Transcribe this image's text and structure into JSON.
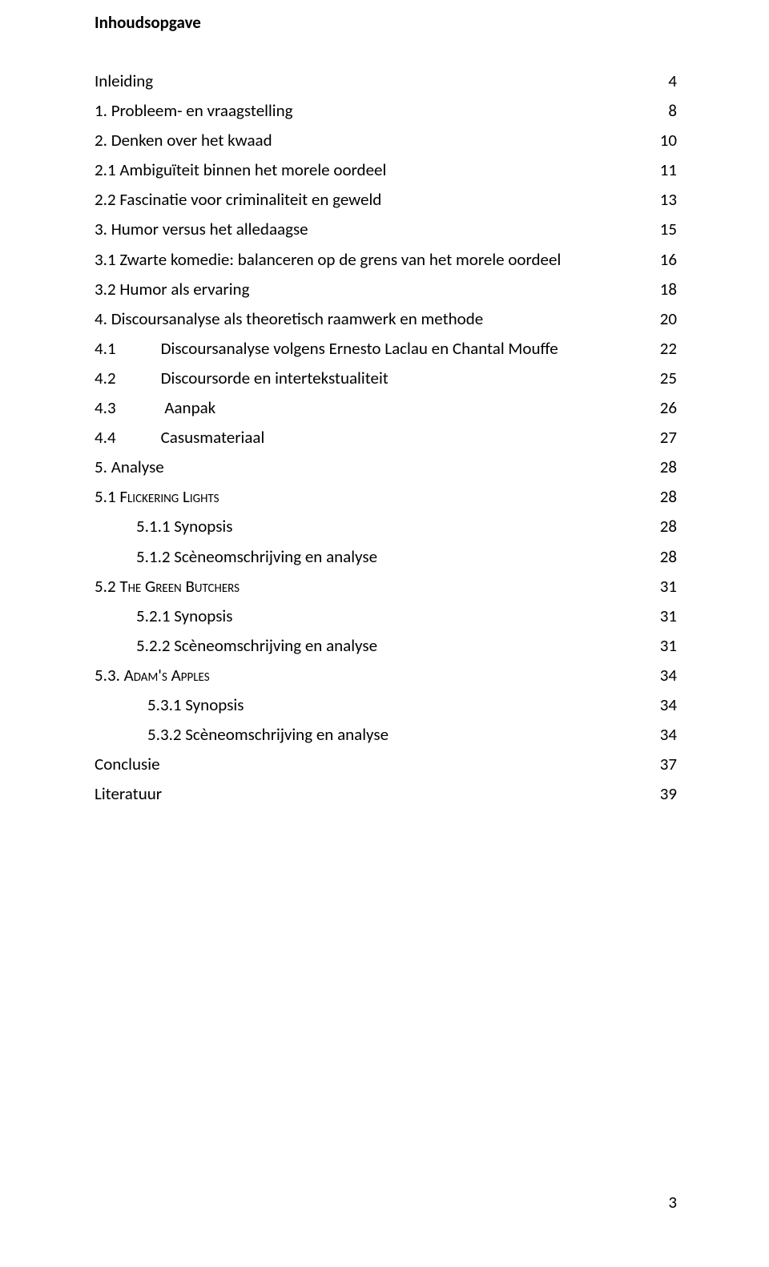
{
  "title": "Inhoudsopgave",
  "entries": [
    {
      "label": "Inleiding",
      "page": "4",
      "level": "lvl0"
    },
    {
      "label": "1. Probleem- en vraagstelling",
      "page": "8",
      "level": "lvl0"
    },
    {
      "label": "2. Denken over het kwaad",
      "page": "10",
      "level": "lvl0"
    },
    {
      "label": "2.1 Ambiguïteit binnen het morele oordeel",
      "page": "11",
      "level": "lvl1"
    },
    {
      "label": "2.2 Fascinatie voor criminaliteit en geweld",
      "page": "13",
      "level": "lvl1"
    },
    {
      "label": "3. Humor versus het alledaagse",
      "page": "15",
      "level": "lvl0"
    },
    {
      "label": "3.1 Zwarte komedie: balanceren op de grens van het morele oordeel",
      "page": "16",
      "level": "lvl1"
    },
    {
      "label": "3.2 Humor als ervaring",
      "page": "18",
      "level": "lvl1"
    },
    {
      "label": "4. Discoursanalyse als theoretisch raamwerk en methode",
      "page": "20",
      "level": "lvl0"
    },
    {
      "num": "4.1",
      "rest": "Discoursanalyse volgens Ernesto Laclau en Chantal Mouffe",
      "page": "22",
      "level": "lvl1",
      "tabbed": true
    },
    {
      "num": "4.2",
      "rest": "Discoursorde en intertekstualiteit",
      "page": "25",
      "level": "lvl1",
      "tabbed": true
    },
    {
      "num": "4.3",
      "rest": " Aanpak",
      "page": "26",
      "level": "lvl1",
      "tabbed": true
    },
    {
      "num": "4.4",
      "rest": "Casusmateriaal",
      "page": "27",
      "level": "lvl1",
      "tabbed": true
    },
    {
      "label": "5. Analyse",
      "page": "28",
      "level": "lvl0"
    },
    {
      "labelPrefix": "5.1 ",
      "labelSmallCaps": "Flickering Lights",
      "page": "28",
      "level": "lvl1",
      "sc": true
    },
    {
      "label": "5.1.1 Synopsis",
      "page": "28",
      "level": "lvl2"
    },
    {
      "label": "5.1.2 Scèneomschrijving en analyse",
      "page": "28",
      "level": "lvl2"
    },
    {
      "labelPrefix": "5.2 ",
      "labelSmallCaps": "The Green Butchers",
      "page": "31",
      "level": "lvl1",
      "sc": true
    },
    {
      "label": "5.2.1 Synopsis",
      "page": "31",
      "level": "lvl2"
    },
    {
      "label": "5.2.2 Scèneomschrijving en analyse",
      "page": "31",
      "level": "lvl2"
    },
    {
      "labelPrefix": "5.3. ",
      "labelSmallCaps": "Adam's Apples",
      "page": "34",
      "level": "lvl1",
      "sc": true
    },
    {
      "label": "5.3.1 Synopsis",
      "page": "34",
      "level": "lvl2b"
    },
    {
      "label": "5.3.2 Scèneomschrijving en analyse",
      "page": "34",
      "level": "lvl2b"
    },
    {
      "label": "Conclusie",
      "page": "37",
      "level": "lvl0"
    },
    {
      "label": "Literatuur",
      "page": "39",
      "level": "lvl0"
    }
  ],
  "pageNumber": "3"
}
